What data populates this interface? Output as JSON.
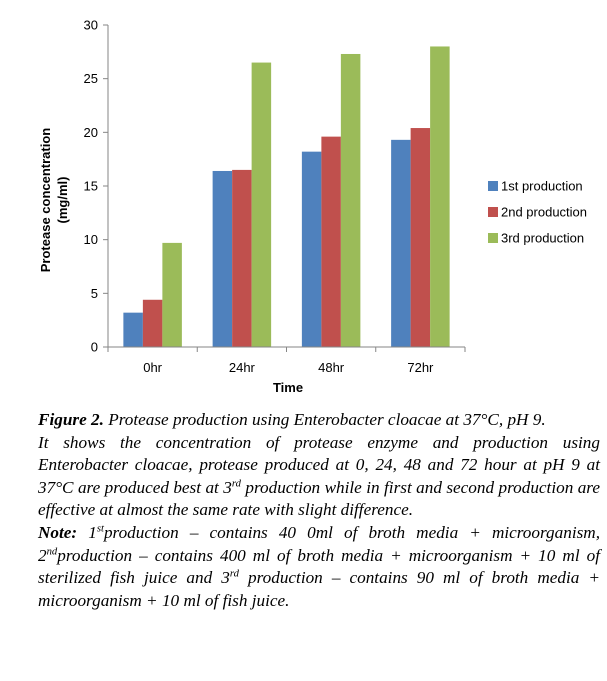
{
  "chart_data": {
    "type": "bar",
    "categories": [
      "0hr",
      "24hr",
      "48hr",
      "72hr"
    ],
    "series": [
      {
        "name": "1st production",
        "color": "#4F81BD",
        "values": [
          3.2,
          16.4,
          18.2,
          19.3
        ]
      },
      {
        "name": "2nd production",
        "color": "#C0504D",
        "values": [
          4.4,
          16.5,
          19.6,
          20.4
        ]
      },
      {
        "name": "3rd production",
        "color": "#9BBB59",
        "values": [
          9.7,
          26.5,
          27.3,
          28.0
        ]
      }
    ],
    "xlabel": "Time",
    "ylabel_line1": "Protease concentration",
    "ylabel_line2": "(mg/ml)",
    "ylim": [
      0,
      30
    ],
    "yticks": [
      "0",
      "5",
      "10",
      "15",
      "20",
      "25",
      "30"
    ],
    "grid": false,
    "legend": "right"
  },
  "caption": {
    "figure_label": "Figure 2.",
    "title": "Protease production using Enterobacter cloacae at 37°C, pH 9.",
    "description": "It shows the concentration of protease enzyme and production using Enterobacter cloacae,  protease produced at 0, 24, 48 and 72 hour at pH 9 at 37°C are produced best at 3",
    "description_sup": "rd",
    "description_end": " production while in first and second production are effective at almost the same rate with slight difference.",
    "note_label": "Note:",
    "note_1_sup": "st",
    "note_1_text": "production – contains 40 0ml of broth media + microorganism,",
    "note_2_sup": "nd",
    "note_2_text": "production – contains 400 ml of broth media + microorganism + 10 ml of sterilized fish juice and 3",
    "note_3_sup": "rd",
    "note_3_text": " production – contains 90 ml of broth media + microorganism + 10 ml of fish juice."
  }
}
